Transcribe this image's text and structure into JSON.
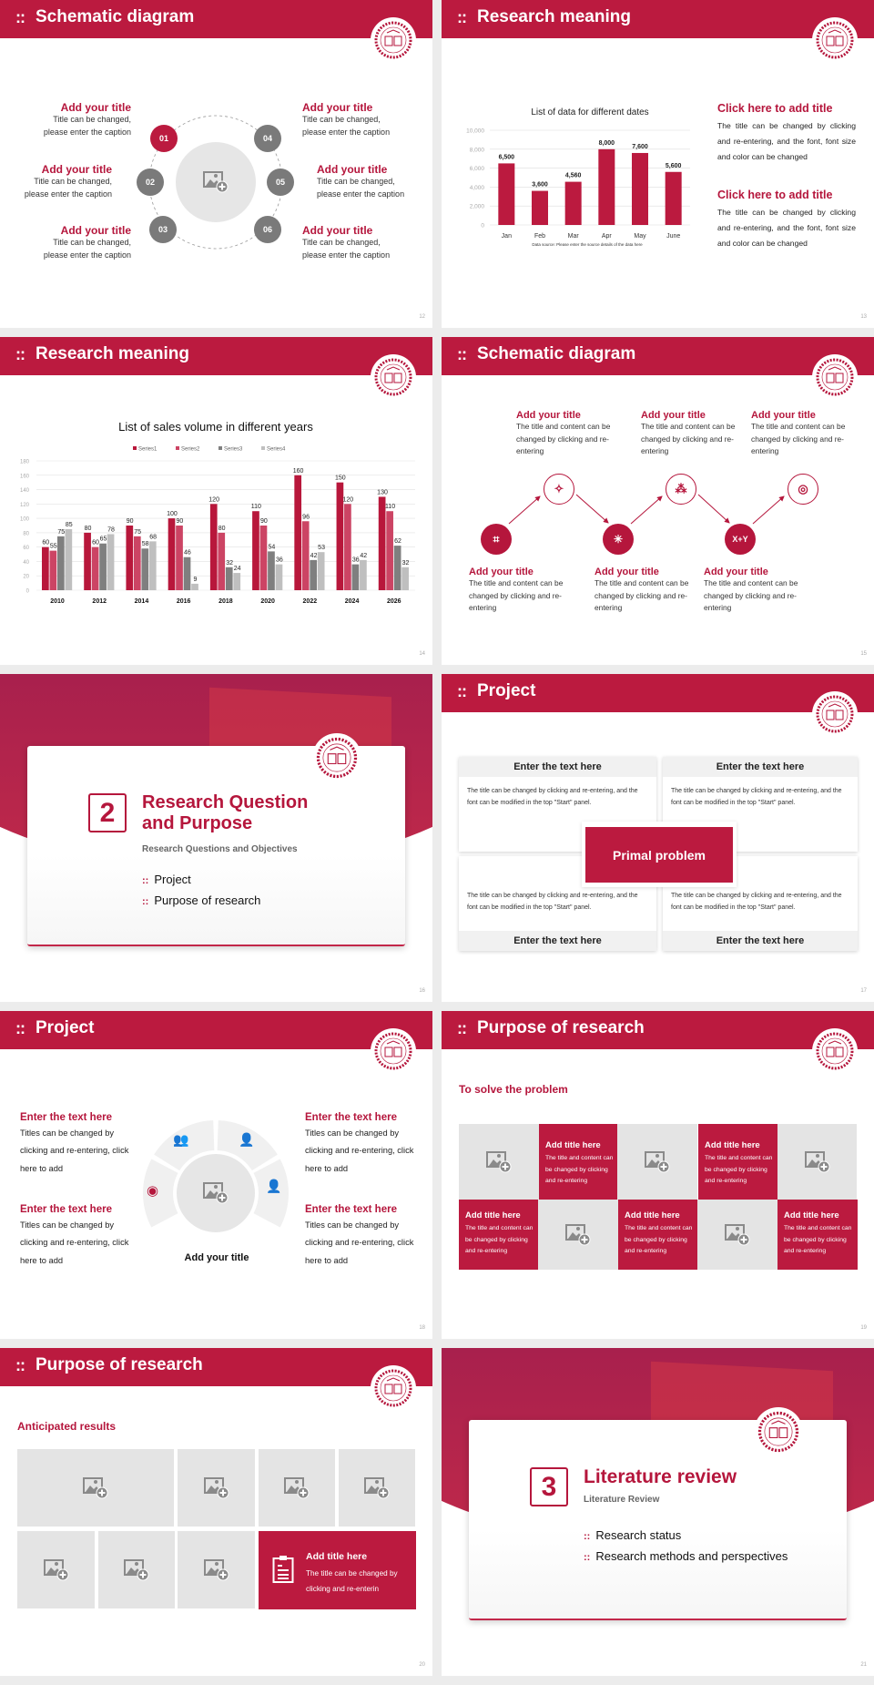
{
  "colors": {
    "accent": "#bb1a3f",
    "gray_circle": "#7a7a7a",
    "placeholder": "#e4e4e4"
  },
  "slides": [
    {
      "page": "12",
      "title": "Schematic diagram",
      "items": [
        {
          "num": "01",
          "title": "Add your title",
          "line1": "Title can be changed,",
          "line2": "please enter the caption"
        },
        {
          "num": "02",
          "title": "Add your title",
          "line1": "Title can be changed,",
          "line2": "please enter the caption"
        },
        {
          "num": "03",
          "title": "Add your title",
          "line1": "Title can be changed,",
          "line2": "please enter the caption"
        },
        {
          "num": "04",
          "title": "Add your title",
          "line1": "Title can be changed,",
          "line2": "please enter the caption"
        },
        {
          "num": "05",
          "title": "Add your title",
          "line1": "Title can be changed,",
          "line2": "please enter the caption"
        },
        {
          "num": "06",
          "title": "Add your title",
          "line1": "Title can be changed,",
          "line2": "please enter the caption"
        }
      ]
    },
    {
      "page": "13",
      "title": "Research meaning",
      "source": "Data source: Please enter the source details of the data here",
      "blocks": [
        {
          "title": "Click here to add title",
          "body": "The title can be changed by clicking and re-entering, and the font, font size and color can be changed"
        },
        {
          "title": "Click here to add title",
          "body": "The title can be changed by clicking and re-entering, and the font, font size and color can be changed"
        }
      ]
    },
    {
      "page": "14",
      "title": "Research meaning"
    },
    {
      "page": "15",
      "title": "Schematic diagram",
      "items": [
        {
          "title": "Add your title",
          "body": "The title and content can be changed by clicking and re-entering",
          "icon": "sparkle-icon"
        },
        {
          "title": "Add your title",
          "body": "The title and content can be changed by clicking and re-entering",
          "icon": "network-icon"
        },
        {
          "title": "Add your title",
          "body": "The title and content can be changed by clicking and re-entering",
          "icon": "target-icon"
        },
        {
          "title": "Add your title",
          "body": "The title and content can be changed by clicking and re-entering",
          "icon": "structure-icon"
        },
        {
          "title": "Add your title",
          "body": "The title and content can be changed by clicking and re-entering",
          "icon": "atom-icon"
        },
        {
          "title": "Add your title",
          "body": "The title and content can be changed by clicking and re-entering",
          "icon": "x-plus-y-icon",
          "icon_text": "X+Y"
        }
      ]
    },
    {
      "page": "16",
      "number": "2",
      "title_line1": "Research Question",
      "title_line2": "and Purpose",
      "subtitle": "Research Questions and Objectives",
      "list": [
        "Project",
        "Purpose of research"
      ]
    },
    {
      "page": "17",
      "title": "Project",
      "center": "Primal problem",
      "boxes": [
        {
          "head": "Enter the text here",
          "body": "The title can be changed by clicking and re-entering, and the font can be modified in the top \"Start\" panel."
        },
        {
          "head": "Enter the text here",
          "body": "The title can be changed by clicking and re-entering, and the font can be modified in the top \"Start\" panel."
        },
        {
          "head": "Enter the text here",
          "body": "The title can be changed by clicking and re-entering, and the font can be modified in the top \"Start\" panel."
        },
        {
          "head": "Enter the text here",
          "body": "The title can be changed by clicking and re-entering, and the font can be modified in the top \"Start\" panel."
        }
      ]
    },
    {
      "page": "18",
      "title": "Project",
      "center_title": "Add your title",
      "items": [
        {
          "title": "Enter the text here",
          "body": "Titles can be changed by clicking and re-entering, click here to add"
        },
        {
          "title": "Enter the text here",
          "body": "Titles can be changed by clicking and re-entering, click here to add"
        },
        {
          "title": "Enter the text here",
          "body": "Titles can be changed by clicking and re-entering, click here to add"
        },
        {
          "title": "Enter the text here",
          "body": "Titles can be changed by clicking and re-entering, click here to add"
        }
      ]
    },
    {
      "page": "19",
      "title": "Purpose of research",
      "subtitle": "To solve the problem",
      "card_title": "Add title here",
      "card_body": "The title and content can be changed by clicking and re-entering"
    },
    {
      "page": "20",
      "title": "Purpose of research",
      "subtitle": "Anticipated results",
      "card_title": "Add title here",
      "card_body": "The title can be changed by clicking and re-enterin"
    },
    {
      "page": "21",
      "number": "3",
      "title_line1": "Literature review",
      "subtitle": "Literature Review",
      "list": [
        "Research status",
        "Research methods and perspectives"
      ]
    }
  ],
  "chart_data": [
    {
      "type": "bar",
      "title": "List of data for different dates",
      "categories": [
        "Jan",
        "Feb",
        "Mar",
        "Apr",
        "May",
        "June"
      ],
      "values": [
        6500,
        3600,
        4560,
        8000,
        7600,
        5600
      ],
      "ylim": [
        0,
        10000
      ],
      "yticks": [
        0,
        2000,
        4000,
        6000,
        8000,
        10000
      ],
      "ytick_labels": [
        "0",
        "2,000",
        "4,000",
        "6,000",
        "8,000",
        "10,000"
      ],
      "data_labels": [
        "6,500",
        "3,600",
        "4,560",
        "8,000",
        "7,600",
        "5,600"
      ],
      "grid": true,
      "color": "#bb1a3f"
    },
    {
      "type": "bar",
      "title": "List of sales volume in different years",
      "categories": [
        "2010",
        "2012",
        "2014",
        "2016",
        "2018",
        "2020",
        "2022",
        "2024",
        "2026"
      ],
      "series": [
        {
          "name": "Series1",
          "color": "#b8173b",
          "values": [
            60,
            80,
            90,
            100,
            120,
            110,
            160,
            150,
            130
          ]
        },
        {
          "name": "Series2",
          "color": "#cc4464",
          "values": [
            55,
            60,
            75,
            90,
            80,
            90,
            96,
            120,
            110
          ]
        },
        {
          "name": "Series3",
          "color": "#7f7f7f",
          "values": [
            75,
            65,
            58,
            46,
            32,
            54,
            42,
            36,
            62
          ]
        },
        {
          "name": "Series4",
          "color": "#bfbfbf",
          "values": [
            85,
            78,
            68,
            9,
            24,
            36,
            53,
            42,
            32
          ]
        }
      ],
      "ylim": [
        0,
        180
      ],
      "yticks": [
        0,
        20,
        40,
        60,
        80,
        100,
        120,
        140,
        160,
        180
      ],
      "legend": "top",
      "grid": true
    }
  ]
}
